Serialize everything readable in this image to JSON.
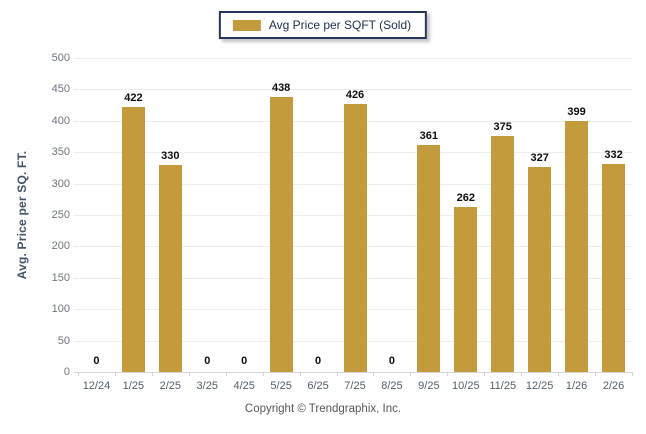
{
  "chart_data": {
    "type": "bar",
    "title": "",
    "legend_label": "Avg Price per SQFT (Sold)",
    "ylabel": "Avg. Price per SQ. FT.",
    "xlabel": "",
    "categories": [
      "12/24",
      "1/25",
      "2/25",
      "3/25",
      "4/25",
      "5/25",
      "6/25",
      "7/25",
      "8/25",
      "9/25",
      "10/25",
      "11/25",
      "12/25",
      "1/26",
      "2/26"
    ],
    "values": [
      0,
      422,
      330,
      0,
      0,
      438,
      0,
      426,
      0,
      361,
      262,
      375,
      327,
      399,
      332
    ],
    "yticks": [
      0,
      50,
      100,
      150,
      200,
      250,
      300,
      350,
      400,
      450,
      500
    ],
    "ylim": [
      0,
      500
    ],
    "grid": "horizontal",
    "legend_position": "top-center",
    "data_labels": true
  },
  "colors": {
    "bar": "#C49B3C",
    "legend_border": "#26365B",
    "gridline": "#EDEDED",
    "axis_line": "#D6D6D6",
    "value_label": "#0E0E0E",
    "tick_label": "#6E7680"
  },
  "footer": {
    "copyright": "Copyright © Trendgraphix, Inc."
  }
}
